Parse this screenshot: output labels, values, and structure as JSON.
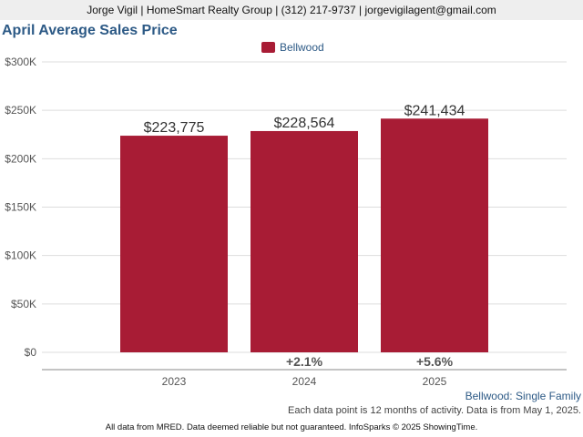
{
  "header": {
    "contact": "Jorge Vigil | HomeSmart Realty Group | (312) 217-9737 | jorgevigilagent@gmail.com"
  },
  "colors": {
    "bar": "#a81c35",
    "title": "#2d5a86",
    "grid": "#dddddd",
    "axis": "#555555"
  },
  "chart_data": {
    "type": "bar",
    "title": "April Average Sales Price",
    "categories": [
      "2023",
      "2024",
      "2025"
    ],
    "series": [
      {
        "name": "Bellwood",
        "values": [
          223775,
          228564,
          241434
        ]
      }
    ],
    "data_labels": [
      "$223,775",
      "$228,564",
      "$241,434"
    ],
    "change_labels": [
      "",
      "+2.1%",
      "+5.6%"
    ],
    "y_ticks": [
      "$0",
      "$50K",
      "$100K",
      "$150K",
      "$200K",
      "$250K",
      "$300K"
    ],
    "ylim": [
      0,
      300000
    ],
    "grid": true,
    "legend_position": "top-center"
  },
  "subject": "Bellwood: Single Family",
  "note": "Each data point is 12 months of activity. Data is from May 1, 2025.",
  "footer": "All data from MRED. Data deemed reliable but not guaranteed. InfoSparks © 2025 ShowingTime."
}
